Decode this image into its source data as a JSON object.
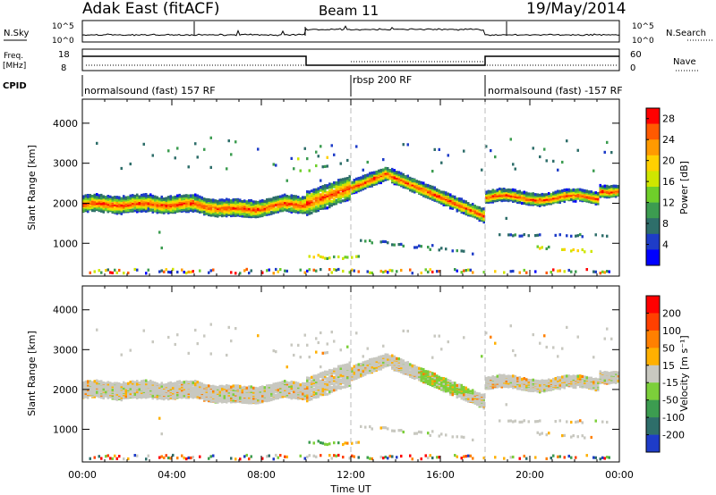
{
  "header": {
    "title": "Adak East (fitACF)",
    "beam": "Beam 11",
    "date": "19/May/2014"
  },
  "top_panels": {
    "nsky_label": "N.Sky",
    "nsearch_label": "N.Search",
    "noise_ticks": [
      "10^5",
      "10^0"
    ],
    "freq_label_1": "Freq.",
    "freq_label_2": "[MHz]",
    "freq_ticks": [
      "18",
      "8"
    ],
    "nave_label": "Nave",
    "nave_ticks": [
      "60",
      "0"
    ],
    "cpid_label": "CPID",
    "cpid_segments": [
      "normalsound (fast) 157 RF",
      "rbsp 200 RF",
      "normalsound (fast) -157 RF"
    ]
  },
  "chart_data": [
    {
      "type": "heatmap",
      "title": "",
      "xlabel": "",
      "ylabel": "Slant Range [km]",
      "x_ticks": [
        "00:00",
        "04:00",
        "08:00",
        "12:00",
        "16:00",
        "20:00",
        "00:00"
      ],
      "y_ticks": [
        "1000",
        "2000",
        "3000",
        "4000"
      ],
      "xlim": [
        0,
        24
      ],
      "ylim": [
        180,
        4600
      ],
      "colorbar_label": "Power [dB]",
      "colorbar_ticks": [
        "4",
        "8",
        "12",
        "16",
        "20",
        "24",
        "28"
      ],
      "colorbar_range": [
        0,
        30
      ],
      "palette": [
        "#0000ff",
        "#1e3cc8",
        "#2e6e6a",
        "#3c9c50",
        "#6fcf2a",
        "#cfe600",
        "#ffd000",
        "#ff9a00",
        "#ff5a00",
        "#ff0000"
      ],
      "mode_change_hours": [
        12,
        18
      ],
      "bands": [
        {
          "from": 0,
          "to": 10,
          "center_range_km": 2000,
          "width_km": 450,
          "power_db": 18
        },
        {
          "from": 10,
          "to": 14,
          "center_range_km": 2500,
          "width_km": 400,
          "power_db": 16
        },
        {
          "from": 14,
          "to": 17.8,
          "center_range_km": 2200,
          "width_km": 350,
          "power_db": 15
        },
        {
          "from": 18,
          "to": 24,
          "center_range_km": 2150,
          "width_km": 300,
          "power_db": 12
        }
      ]
    },
    {
      "type": "heatmap",
      "title": "",
      "xlabel": "Time UT",
      "ylabel": "Slant Range [km]",
      "x_ticks": [
        "00:00",
        "04:00",
        "08:00",
        "12:00",
        "16:00",
        "20:00",
        "00:00"
      ],
      "y_ticks": [
        "1000",
        "2000",
        "3000",
        "4000"
      ],
      "xlim": [
        0,
        24
      ],
      "ylim": [
        180,
        4600
      ],
      "colorbar_label": "Velocity [m s⁻¹]",
      "colorbar_ticks": [
        "200",
        "100",
        "50",
        "15",
        "-15",
        "-50",
        "-100",
        "-200"
      ],
      "palette": [
        "#1e3cc8",
        "#2e6e6a",
        "#3c9c50",
        "#7ccf3a",
        "#c8c8c0",
        "#ffb000",
        "#ff8000",
        "#ff4000",
        "#ff0000"
      ],
      "mode_change_hours": [
        12,
        18
      ]
    }
  ]
}
